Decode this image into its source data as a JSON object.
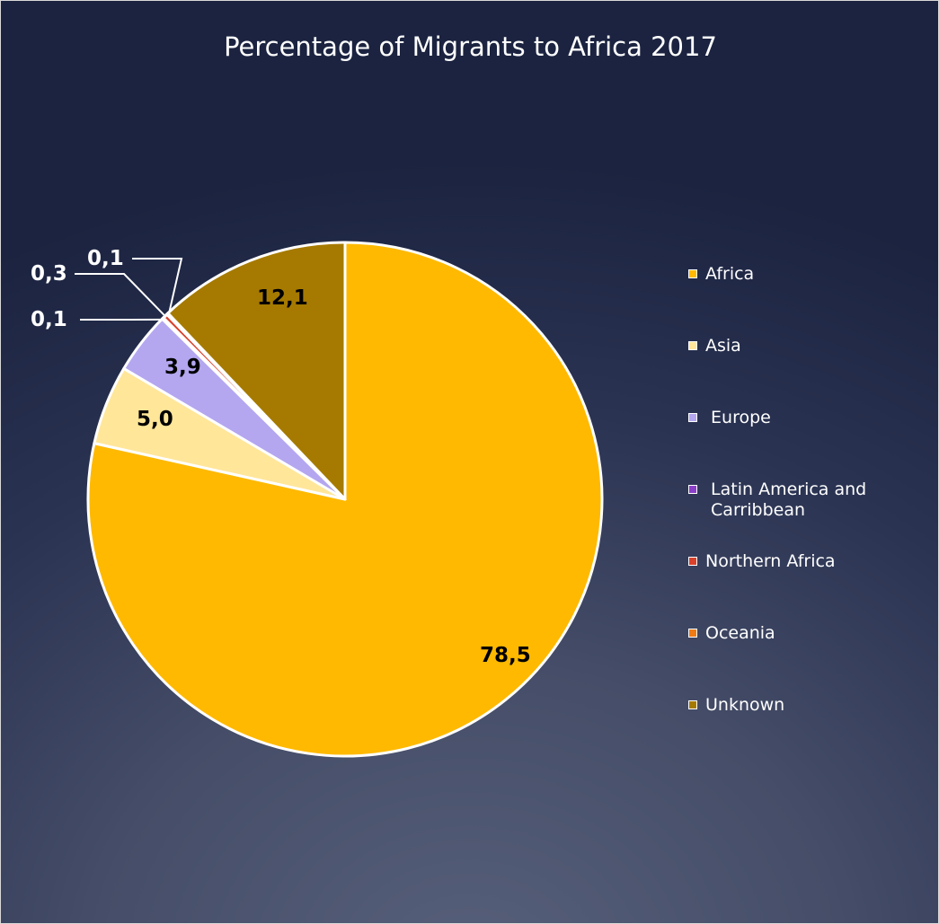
{
  "chart_data": {
    "type": "pie",
    "title": "Percentage of Migrants to Africa 2017",
    "start_angle_deg": 0,
    "direction": "clockwise",
    "legend_position": "right",
    "series": [
      {
        "name": "Africa",
        "value": 78.5,
        "label": "78,5",
        "color": "#ffb900"
      },
      {
        "name": "Asia",
        "value": 5.0,
        "label": "5,0",
        "color": "#ffe699"
      },
      {
        "name": "Europe",
        "value": 3.9,
        "label": "3,9",
        "color": "#b4a7f0"
      },
      {
        "name": "Latin America and Carribbean",
        "value": 0.1,
        "label": "0,1",
        "color": "#8a3fc9"
      },
      {
        "name": "Northern Africa",
        "value": 0.3,
        "label": "0,3",
        "color": "#d9412b"
      },
      {
        "name": "Oceania",
        "value": 0.1,
        "label": "0,1",
        "color": "#f07a14"
      },
      {
        "name": "Unknown",
        "value": 12.1,
        "label": "12,1",
        "color": "#a67a00"
      }
    ],
    "legend": [
      {
        "label": "Africa"
      },
      {
        "label": "Asia"
      },
      {
        "label": " Europe"
      },
      {
        "label": " Latin America and\n Carribbean"
      },
      {
        "label": "Northern Africa"
      },
      {
        "label": "Oceania"
      },
      {
        "label": "Unknown"
      }
    ]
  }
}
